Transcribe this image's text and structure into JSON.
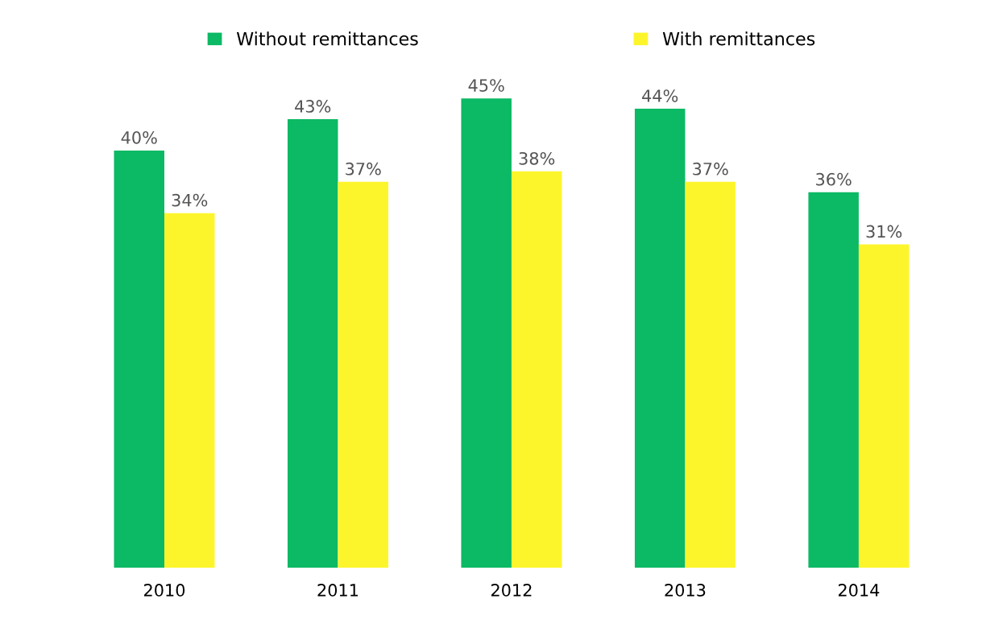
{
  "chart_data": {
    "type": "bar",
    "categories": [
      "2010",
      "2011",
      "2012",
      "2013",
      "2014"
    ],
    "series": [
      {
        "name": "Without remittances",
        "color": "#0cb964",
        "values": [
          40,
          43,
          45,
          44,
          36
        ],
        "value_labels": [
          "40%",
          "43%",
          "45%",
          "44%",
          "36%"
        ]
      },
      {
        "name": "With remittances",
        "color": "#fdf52c",
        "values": [
          34,
          37,
          38,
          37,
          31
        ],
        "value_labels": [
          "34%",
          "37%",
          "38%",
          "37%",
          "31%"
        ]
      }
    ],
    "tick_labels": "x",
    "grid": false,
    "legend": "top"
  }
}
